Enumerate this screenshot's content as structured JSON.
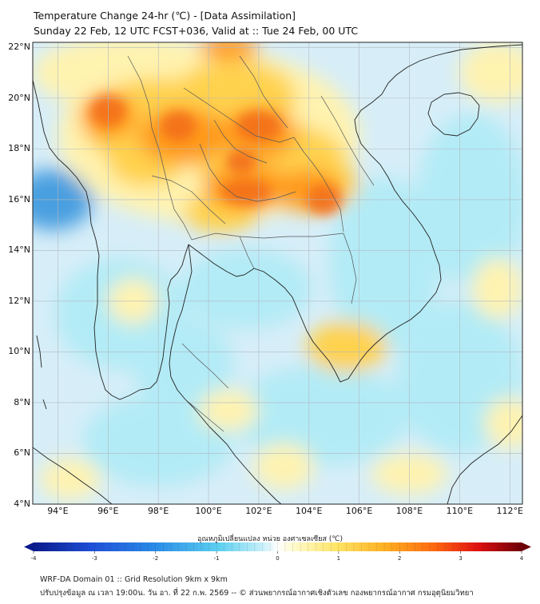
{
  "title": {
    "line1": "Temperature Change 24-hr (℃) - [Data Assimilation]",
    "line2": "Sunday 22 Feb, 12 UTC FCST+036, Valid at :: Tue 24 Feb, 00 UTC"
  },
  "map": {
    "lat_labels": [
      "22°N",
      "20°N",
      "18°N",
      "16°N",
      "14°N",
      "12°N",
      "10°N",
      "8°N",
      "6°N",
      "4°N"
    ],
    "lon_labels": [
      "94°E",
      "96°E",
      "98°E",
      "100°E",
      "102°E",
      "104°E",
      "106°E",
      "108°E",
      "110°E",
      "112°E"
    ],
    "lat_range": [
      4,
      22.2
    ],
    "lon_range": [
      93,
      112.5
    ],
    "grid": true,
    "field": "24-hr temperature change",
    "colors": {
      "background": "#d7eef8",
      "warm_light": "#fff3b0",
      "warm_mid": "#ffd24d",
      "warm_high": "#ff9a1f",
      "hot": "#f26d15",
      "cool": "#b2ebf6",
      "cold": "#4a9fe0",
      "coast": "#222222",
      "border": "#555555"
    }
  },
  "colorbar": {
    "label": "อุณหภูมิเปลี่ยนแปลง หน่วย องศาเซลเซียส (℃)",
    "ticks": [
      "-4",
      "-3",
      "-2",
      "-1",
      "0",
      "1",
      "2",
      "3",
      "4"
    ],
    "min": -4,
    "max": 4
  },
  "footer": {
    "line1": "WRF-DA Domain 01 :: Grid Resolution 9km x 9km",
    "line2": "ปรับปรุงข้อมูล ณ เวลา 19:00น. วัน อา. ที่ 22 ก.พ. 2569 -- © ส่วนพยากรณ์อากาศเชิงตัวเลข กองพยากรณ์อากาศ กรมอุตุนิยมวิทยา"
  }
}
